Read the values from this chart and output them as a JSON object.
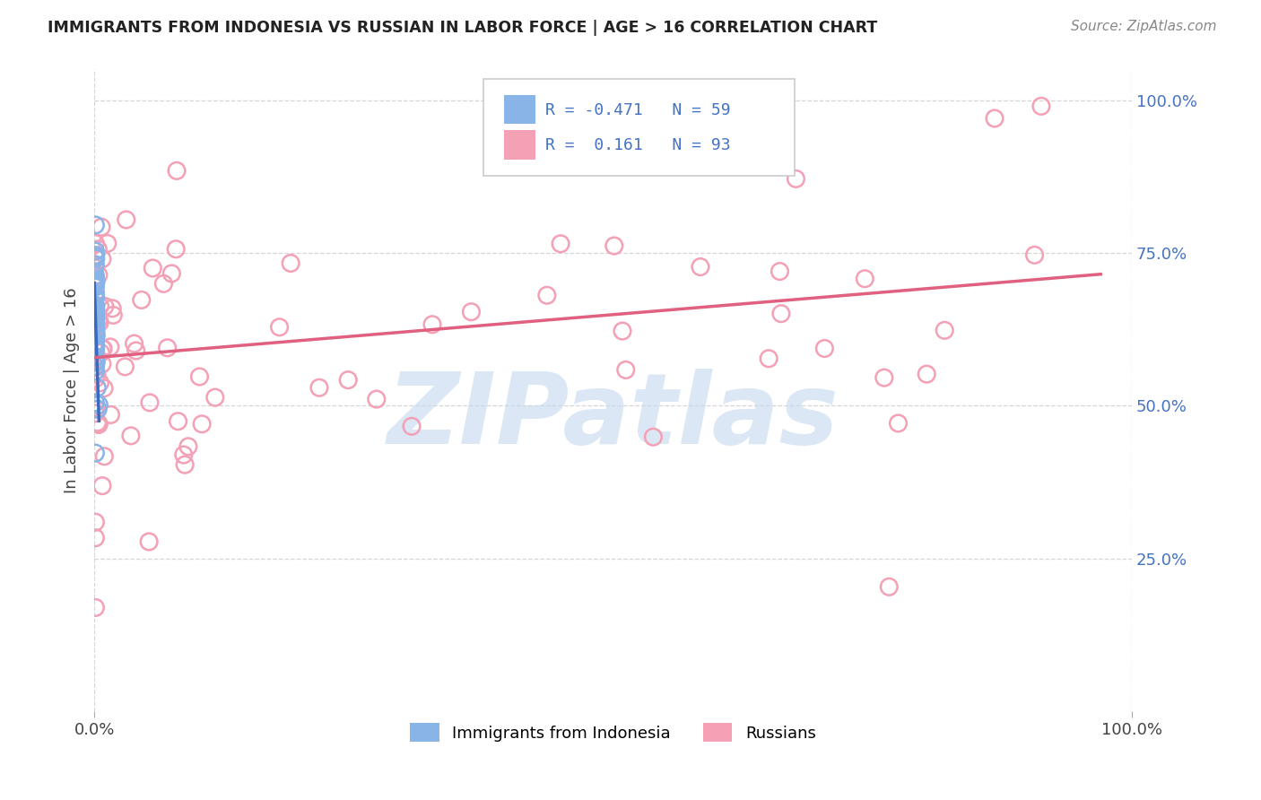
{
  "title": "IMMIGRANTS FROM INDONESIA VS RUSSIAN IN LABOR FORCE | AGE > 16 CORRELATION CHART",
  "source": "Source: ZipAtlas.com",
  "ylabel": "In Labor Force | Age > 16",
  "legend_label1": "Immigrants from Indonesia",
  "legend_label2": "Russians",
  "color_indonesia": "#89b4e8",
  "color_russia": "#f4a0b5",
  "color_trend_indonesia": "#3a6abf",
  "color_trend_russia": "#e06080",
  "color_dashed_extend": "#b8d0ea",
  "watermark_text": "ZIPatlas",
  "watermark_color": "#c5d8f0",
  "xlim": [
    0.0,
    1.0
  ],
  "ylim": [
    0.0,
    1.05
  ],
  "figsize": [
    14.06,
    8.92
  ],
  "dpi": 100,
  "R_indonesia": -0.471,
  "N_indonesia": 59,
  "R_russia": 0.161,
  "N_russia": 93
}
